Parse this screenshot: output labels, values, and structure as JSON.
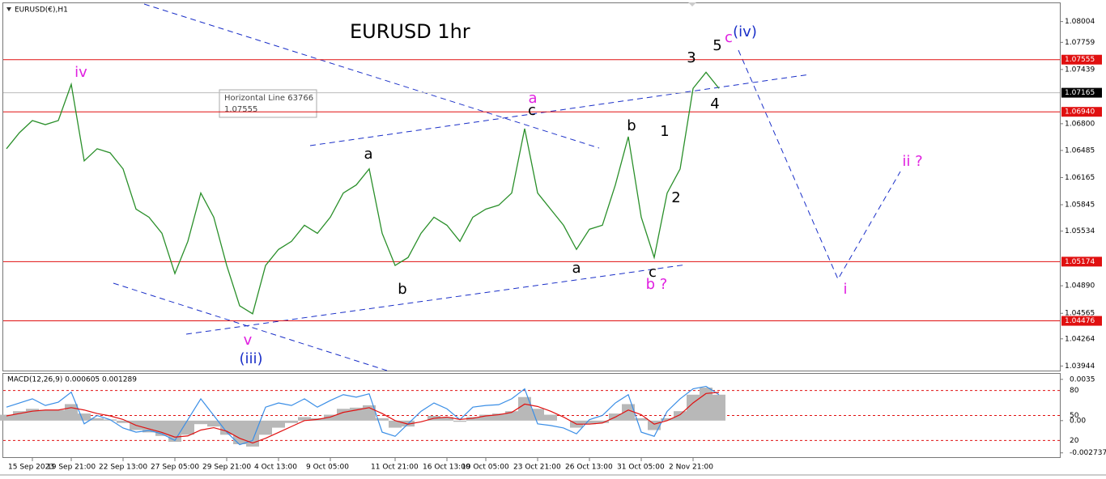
{
  "chart_data": {
    "type": "line",
    "symbol": "EURUSD(€),H1",
    "title": "EURUSD 1hr",
    "title_color": "#e0101a",
    "categories": [
      null,
      null,
      "15 Sep 2023",
      null,
      null,
      "19 Sep 21:00",
      null,
      null,
      null,
      "22 Sep 13:00",
      null,
      null,
      null,
      "27 Sep 05:00",
      null,
      null,
      null,
      "29 Sep 21:00",
      null,
      null,
      null,
      "4 Oct 13:00",
      null,
      null,
      null,
      "9 Oct 05:00",
      null,
      null,
      null,
      null,
      "11 Oct 21:00",
      null,
      null,
      null,
      "16 Oct 13:00",
      null,
      null,
      "19 Oct 05:00",
      null,
      null,
      null,
      "23 Oct 21:00",
      null,
      null,
      null,
      "26 Oct 13:00",
      null,
      null,
      null,
      "31 Oct 05:00",
      null,
      null,
      null,
      "2 Nov 21:00",
      null,
      null
    ],
    "series": [
      {
        "color": "#2a8f2a",
        "values": [
          1.06505,
          1.06694,
          1.06837,
          1.06789,
          1.06837,
          1.07264,
          1.06362,
          1.06505,
          1.06457,
          1.06267,
          1.05793,
          1.05698,
          1.05508,
          1.05034,
          1.05413,
          1.05983,
          1.05698,
          1.05129,
          1.04654,
          1.04559,
          1.05129,
          1.05318,
          1.05413,
          1.05603,
          1.05508,
          1.05698,
          1.05983,
          1.06078,
          1.06267,
          1.05508,
          1.05129,
          1.05223,
          1.05508,
          1.05698,
          1.05603,
          1.05413,
          1.05698,
          1.05793,
          1.0584,
          1.05983,
          1.06742,
          1.05983,
          1.05793,
          1.05603,
          1.05318,
          1.05556,
          1.05603,
          1.06078,
          1.06647,
          1.05698,
          1.05223,
          1.05983,
          1.06267,
          1.07216,
          1.07406,
          1.07216
        ]
      }
    ],
    "ylim": [
      1.0389,
      1.0822
    ],
    "yticks": [
      1.08004,
      1.07759,
      1.07439,
      {
        "value": 1.068,
        "label": "1.06800"
      },
      1.06485,
      1.06165,
      1.05845,
      1.05534,
      {
        "value": 1.0489,
        "label": "1.04890"
      },
      1.04565,
      1.04264,
      1.03944
    ],
    "levels": [
      {
        "value": 1.07555,
        "label": "1.07555"
      },
      {
        "value": 1.0694,
        "label": "1.06940"
      },
      {
        "value": 1.05174,
        "label": "1.05174"
      },
      {
        "value": 1.04476,
        "label": "1.04476"
      }
    ],
    "level_color": "#e01010",
    "current_price": 1.07165,
    "tooltip": {
      "title": "Horizontal Line 63766",
      "value": "1.07555"
    },
    "annotations": [
      {
        "text": "iv",
        "color": "#e020e0"
      },
      {
        "text": "v",
        "color": "#e020e0"
      },
      {
        "text": "(iii)",
        "color": "#1a2fc8"
      },
      {
        "text": "a",
        "color": "#000000"
      },
      {
        "text": "b",
        "color": "#000000"
      },
      {
        "text": "a",
        "color": "#e020e0"
      },
      {
        "text": "c",
        "color": "#000000"
      },
      {
        "text": "a",
        "color": "#000000"
      },
      {
        "text": "b",
        "color": "#000000"
      },
      {
        "text": "c",
        "color": "#000000"
      },
      {
        "text": "b ?",
        "color": "#e020e0"
      },
      {
        "text": "1",
        "color": "#000000"
      },
      {
        "text": "2",
        "color": "#000000"
      },
      {
        "text": "3",
        "color": "#000000"
      },
      {
        "text": "5",
        "color": "#000000"
      },
      {
        "text": "4",
        "color": "#000000"
      },
      {
        "text": "c",
        "color": "#e020e0"
      },
      {
        "text": "(iv)",
        "color": "#1a2fc8"
      },
      {
        "text": "i",
        "color": "#e020e0"
      },
      {
        "text": "ii ?",
        "color": "#e020e0"
      }
    ],
    "macd": {
      "label": "MACD(12,26,9) 0.000605 0.001289",
      "ylim": [
        -0.0031,
        0.00397
      ],
      "yticks": [
        0.0035,
        {
          "value": 0,
          "label": "0.00"
        },
        -0.002737
      ],
      "overlay_ylim": [
        0,
        100
      ],
      "overlay_yticks": [
        80,
        50,
        20
      ],
      "histogram": {
        "color": "#b8b8b8",
        "values": [
          0.0005,
          0.0008,
          0.001,
          0.0009,
          0.0009,
          0.0014,
          0.0006,
          0.0002,
          0.0001,
          -0.0002,
          -0.0008,
          -0.001,
          -0.0013,
          -0.0018,
          -0.0012,
          -0.0003,
          -0.0005,
          -0.0012,
          -0.002,
          -0.0022,
          -0.0012,
          -0.0006,
          -0.0002,
          0.0003,
          0.0002,
          0.0005,
          0.001,
          0.0011,
          0.0013,
          0.0002,
          -0.0006,
          -0.0005,
          0,
          0.0004,
          0.0003,
          -0.0001,
          0.0003,
          0.0005,
          0.0006,
          0.0008,
          0.002,
          0.001,
          0.0005,
          0,
          -0.0006,
          -0.0003,
          -0.0002,
          0.0006,
          0.0014,
          0.0002,
          -0.0008,
          0.0002,
          0.0008,
          0.0022,
          0.0028,
          0.0022
        ]
      },
      "signal": {
        "color": "#e01010",
        "values": [
          0.0004,
          0.0006,
          0.0008,
          0.0009,
          0.0009,
          0.0011,
          0.0009,
          0.0006,
          0.0004,
          0.0001,
          -0.0004,
          -0.0007,
          -0.001,
          -0.0014,
          -0.0013,
          -0.0008,
          -0.0006,
          -0.0009,
          -0.0015,
          -0.0019,
          -0.0015,
          -0.001,
          -0.0005,
          0,
          0.0001,
          0.0003,
          0.0007,
          0.0009,
          0.0011,
          0.0006,
          0,
          -0.0003,
          -0.0001,
          0.0002,
          0.0003,
          0.0001,
          0.0002,
          0.0004,
          0.0005,
          0.0007,
          0.0014,
          0.0012,
          0.0008,
          0.0003,
          -0.0003,
          -0.0003,
          -0.0002,
          0.0003,
          0.0009,
          0.0005,
          -0.0003,
          0,
          0.0005,
          0.0015,
          0.0023,
          0.0024
        ]
      },
      "overlay": {
        "color": "#3a8ee6",
        "values": [
          60,
          65,
          70,
          62,
          66,
          78,
          40,
          50,
          45,
          35,
          30,
          32,
          28,
          20,
          45,
          70,
          50,
          30,
          15,
          20,
          60,
          65,
          62,
          70,
          60,
          68,
          75,
          72,
          76,
          30,
          25,
          40,
          55,
          65,
          58,
          45,
          60,
          62,
          63,
          70,
          82,
          40,
          38,
          35,
          28,
          45,
          50,
          65,
          75,
          30,
          25,
          55,
          70,
          82,
          85,
          75
        ]
      }
    }
  }
}
